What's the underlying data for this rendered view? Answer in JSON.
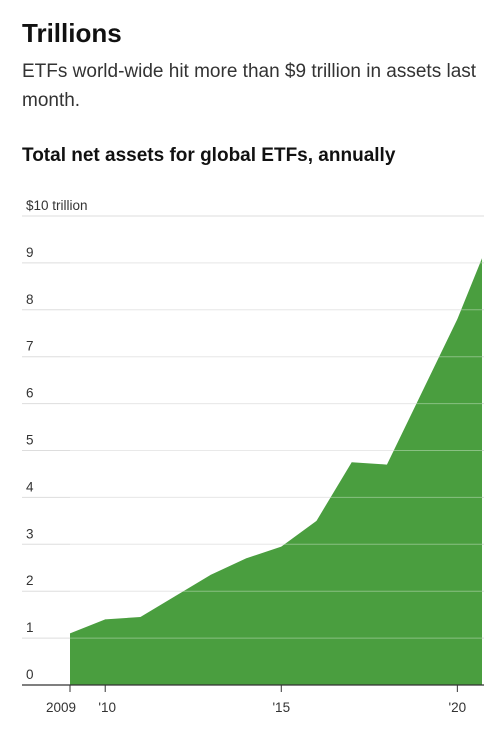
{
  "header": {
    "title": "Trillions",
    "subtitle": "ETFs world-wide hit more than $9 trillion in assets last month."
  },
  "chart_data": {
    "type": "area",
    "title": "Total net assets for global ETFs, annually",
    "xlabel": "",
    "ylabel": "",
    "x": [
      2009,
      2010,
      2011,
      2012,
      2013,
      2014,
      2015,
      2016,
      2017,
      2018,
      2019,
      2020,
      2020.7
    ],
    "values": [
      1.1,
      1.4,
      1.45,
      1.9,
      2.35,
      2.7,
      2.95,
      3.5,
      4.75,
      4.7,
      6.25,
      7.8,
      9.1
    ],
    "ylim": [
      0,
      10
    ],
    "xlim": [
      2009,
      2020.7
    ],
    "y_ticks": [
      0,
      1,
      2,
      3,
      4,
      5,
      6,
      7,
      8,
      9,
      10
    ],
    "y_tick_labels": [
      "0",
      "1",
      "2",
      "3",
      "4",
      "5",
      "6",
      "7",
      "8",
      "9",
      "$10 trillion"
    ],
    "x_ticks": [
      2009,
      2010,
      2015,
      2020
    ],
    "x_tick_labels": [
      "2009",
      "'10",
      "'15",
      "'20"
    ],
    "grid": true,
    "colors": {
      "fill": "#4a9e3f",
      "gridline": "#dddddd",
      "axis": "#333333"
    }
  }
}
